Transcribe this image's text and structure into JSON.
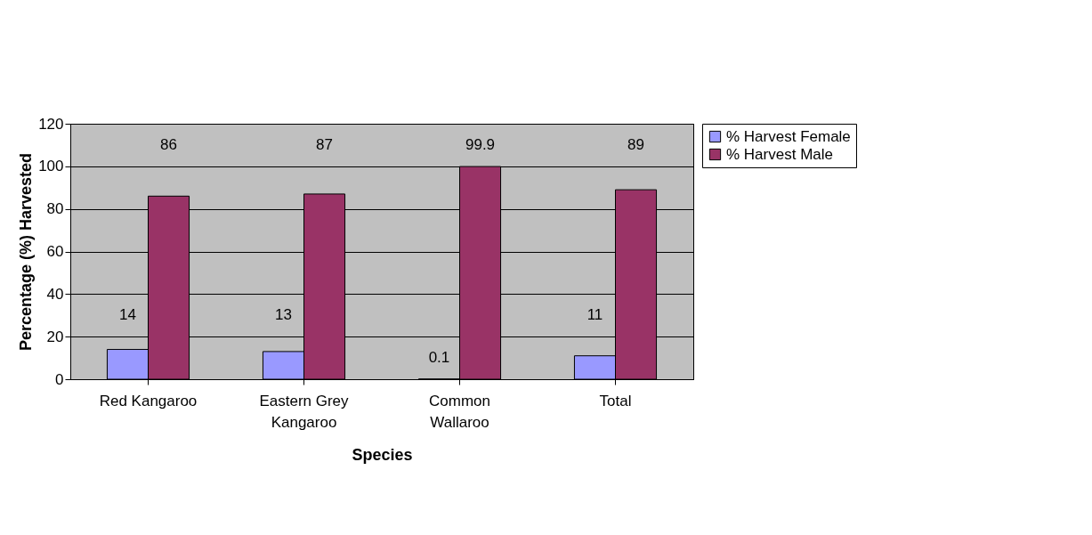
{
  "chart_data": {
    "type": "bar",
    "xlabel": "Species",
    "ylabel": "Percentage (%) Harvested",
    "categories": [
      "Red Kangaroo",
      "Eastern Grey Kangaroo",
      "Common Wallaroo",
      "Total"
    ],
    "series": [
      {
        "name": "% Harvest Female",
        "color": "#9999ff",
        "values": [
          14,
          13,
          0.1,
          11
        ]
      },
      {
        "name": "% Harvest Male",
        "color": "#993366",
        "values": [
          86,
          87,
          99.9,
          89
        ]
      }
    ],
    "ylim": [
      0,
      120
    ],
    "yticks": [
      0,
      20,
      40,
      60,
      80,
      100,
      120
    ],
    "grid": "y",
    "legend": "right",
    "data_labels": true
  }
}
